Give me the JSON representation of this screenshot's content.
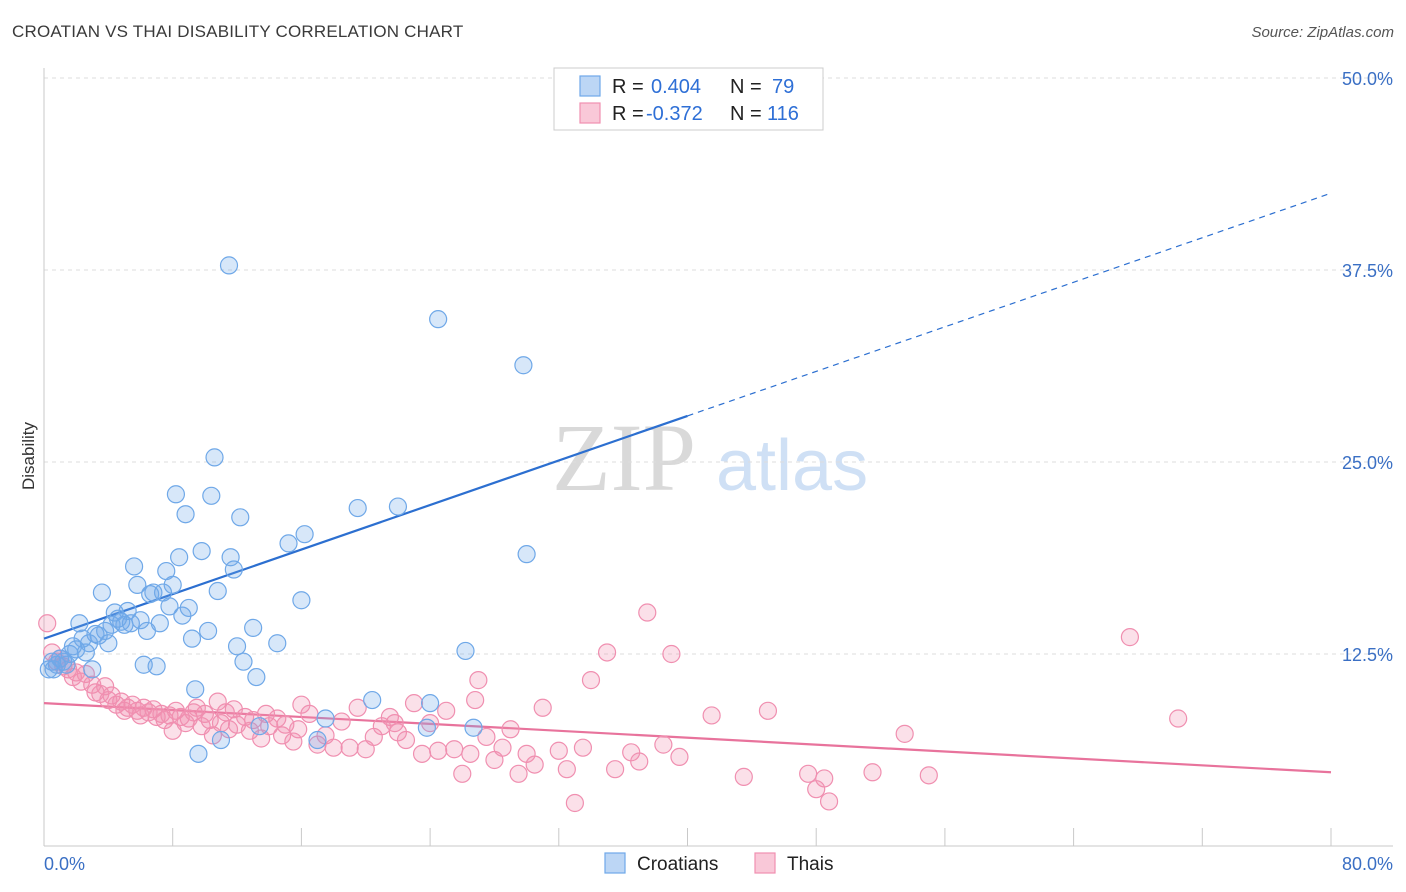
{
  "title": "CROATIAN VS THAI DISABILITY CORRELATION CHART",
  "source": "Source: ZipAtlas.com",
  "watermark": {
    "zip": "ZIP",
    "atlas": "atlas"
  },
  "colors": {
    "blue": "#6fa8e8",
    "blue_line": "#2c6fd0",
    "pink": "#f08fb0",
    "pink_line": "#e8739c",
    "axis_label": "#3a6fc4",
    "grid": "#dddddd"
  },
  "legend": {
    "rows": [
      {
        "r_label": "R =",
        "r_value": "0.404",
        "n_label": "N =",
        "n_value": "79"
      },
      {
        "r_label": "R =",
        "r_value": "-0.372",
        "n_label": "N =",
        "n_value": "116"
      }
    ]
  },
  "bottom_legend": [
    "Croatians",
    "Thais"
  ],
  "chart_data": {
    "type": "scatter",
    "title": "CROATIAN VS THAI DISABILITY CORRELATION CHART",
    "xlabel": "",
    "ylabel": "Disability",
    "xlim": [
      0,
      80
    ],
    "ylim": [
      0,
      50
    ],
    "x_tick_labels": [
      "0.0%",
      "80.0%"
    ],
    "y_ticks": [
      12.5,
      25.0,
      37.5,
      50.0
    ],
    "y_tick_labels": [
      "12.5%",
      "25.0%",
      "37.5%",
      "50.0%"
    ],
    "grid": "horizontal dashed",
    "series": [
      {
        "name": "Croatians",
        "color": "#6fa8e8",
        "R": 0.404,
        "N": 79,
        "trend": {
          "x0": 0,
          "y0": 13.5,
          "x1": 40,
          "y1": 28.0,
          "dashed_to_x": 80,
          "dashed_to_y": 42.5
        },
        "points": [
          [
            0.3,
            11.5
          ],
          [
            0.5,
            12.0
          ],
          [
            0.6,
            11.5
          ],
          [
            0.8,
            11.8
          ],
          [
            1.0,
            12.2
          ],
          [
            1.2,
            12.0
          ],
          [
            1.4,
            11.8
          ],
          [
            1.6,
            12.5
          ],
          [
            1.8,
            13.0
          ],
          [
            2.0,
            12.8
          ],
          [
            2.2,
            14.5
          ],
          [
            2.4,
            13.5
          ],
          [
            2.6,
            12.6
          ],
          [
            2.8,
            13.2
          ],
          [
            3.0,
            11.5
          ],
          [
            3.2,
            13.8
          ],
          [
            3.4,
            13.7
          ],
          [
            3.6,
            16.5
          ],
          [
            3.8,
            14.0
          ],
          [
            4.0,
            13.2
          ],
          [
            4.2,
            14.4
          ],
          [
            4.4,
            15.2
          ],
          [
            4.6,
            14.8
          ],
          [
            4.8,
            14.6
          ],
          [
            5.0,
            14.4
          ],
          [
            5.2,
            15.3
          ],
          [
            5.4,
            14.5
          ],
          [
            5.6,
            18.2
          ],
          [
            5.8,
            17.0
          ],
          [
            6.0,
            14.7
          ],
          [
            6.2,
            11.8
          ],
          [
            6.4,
            14.0
          ],
          [
            6.6,
            16.4
          ],
          [
            6.8,
            16.5
          ],
          [
            7.0,
            11.7
          ],
          [
            7.2,
            14.5
          ],
          [
            7.4,
            16.5
          ],
          [
            7.6,
            17.9
          ],
          [
            7.8,
            15.6
          ],
          [
            8.0,
            17.0
          ],
          [
            8.2,
            22.9
          ],
          [
            8.4,
            18.8
          ],
          [
            8.6,
            15.0
          ],
          [
            8.8,
            21.6
          ],
          [
            9.0,
            15.5
          ],
          [
            9.2,
            13.5
          ],
          [
            9.4,
            10.2
          ],
          [
            9.6,
            6.0
          ],
          [
            9.8,
            19.2
          ],
          [
            10.2,
            14.0
          ],
          [
            10.4,
            22.8
          ],
          [
            10.6,
            25.3
          ],
          [
            10.8,
            16.6
          ],
          [
            11.0,
            6.9
          ],
          [
            11.6,
            18.8
          ],
          [
            11.8,
            18.0
          ],
          [
            12.0,
            13.0
          ],
          [
            12.2,
            21.4
          ],
          [
            12.4,
            12.0
          ],
          [
            11.5,
            37.8
          ],
          [
            13.0,
            14.2
          ],
          [
            13.2,
            11.0
          ],
          [
            13.4,
            7.8
          ],
          [
            14.5,
            13.2
          ],
          [
            15.2,
            19.7
          ],
          [
            16.0,
            16.0
          ],
          [
            16.2,
            20.3
          ],
          [
            17.0,
            6.9
          ],
          [
            17.5,
            8.3
          ],
          [
            19.5,
            22.0
          ],
          [
            20.4,
            9.5
          ],
          [
            24.0,
            9.3
          ],
          [
            24.5,
            34.3
          ],
          [
            23.8,
            7.7
          ],
          [
            30.0,
            19.0
          ],
          [
            29.8,
            31.3
          ],
          [
            22.0,
            22.1
          ],
          [
            26.7,
            7.7
          ],
          [
            26.2,
            12.7
          ]
        ]
      },
      {
        "name": "Thais",
        "color": "#f08fb0",
        "R": -0.372,
        "N": 116,
        "trend": {
          "x0": 0,
          "y0": 9.3,
          "x1": 80,
          "y1": 4.8
        },
        "points": [
          [
            0.2,
            14.5
          ],
          [
            0.5,
            12.6
          ],
          [
            0.8,
            12.0
          ],
          [
            1.0,
            12.2
          ],
          [
            1.2,
            11.7
          ],
          [
            1.5,
            11.5
          ],
          [
            1.8,
            11.0
          ],
          [
            2.0,
            11.3
          ],
          [
            2.3,
            10.7
          ],
          [
            2.6,
            11.2
          ],
          [
            3.0,
            10.5
          ],
          [
            3.2,
            10.0
          ],
          [
            3.5,
            9.9
          ],
          [
            3.8,
            10.4
          ],
          [
            4.0,
            9.5
          ],
          [
            4.2,
            9.8
          ],
          [
            4.5,
            9.2
          ],
          [
            4.8,
            9.4
          ],
          [
            5.0,
            8.8
          ],
          [
            5.2,
            9.0
          ],
          [
            5.5,
            9.2
          ],
          [
            5.8,
            8.8
          ],
          [
            6.0,
            8.5
          ],
          [
            6.2,
            9.0
          ],
          [
            6.5,
            8.7
          ],
          [
            6.8,
            8.9
          ],
          [
            7.0,
            8.4
          ],
          [
            7.3,
            8.6
          ],
          [
            7.5,
            8.2
          ],
          [
            7.8,
            8.5
          ],
          [
            8.0,
            7.5
          ],
          [
            8.2,
            8.8
          ],
          [
            8.5,
            8.4
          ],
          [
            8.8,
            8.0
          ],
          [
            9.0,
            8.3
          ],
          [
            9.3,
            8.7
          ],
          [
            9.5,
            9.0
          ],
          [
            9.8,
            7.8
          ],
          [
            10.0,
            8.6
          ],
          [
            10.3,
            8.2
          ],
          [
            10.5,
            7.2
          ],
          [
            10.8,
            9.4
          ],
          [
            11.0,
            8.0
          ],
          [
            11.3,
            8.7
          ],
          [
            11.5,
            7.6
          ],
          [
            11.8,
            8.9
          ],
          [
            12.0,
            7.9
          ],
          [
            12.5,
            8.4
          ],
          [
            12.8,
            7.5
          ],
          [
            13.0,
            8.2
          ],
          [
            13.5,
            7.0
          ],
          [
            13.8,
            8.6
          ],
          [
            14.0,
            7.8
          ],
          [
            14.5,
            8.3
          ],
          [
            14.8,
            7.2
          ],
          [
            15.0,
            7.9
          ],
          [
            15.5,
            6.8
          ],
          [
            15.8,
            7.6
          ],
          [
            16.0,
            9.2
          ],
          [
            16.5,
            8.6
          ],
          [
            17.0,
            6.6
          ],
          [
            17.5,
            7.2
          ],
          [
            18.0,
            6.4
          ],
          [
            18.5,
            8.1
          ],
          [
            19.0,
            6.4
          ],
          [
            19.5,
            9.0
          ],
          [
            20.0,
            6.3
          ],
          [
            20.5,
            7.1
          ],
          [
            21.0,
            7.8
          ],
          [
            21.5,
            8.4
          ],
          [
            22.0,
            7.4
          ],
          [
            22.5,
            6.9
          ],
          [
            23.0,
            9.3
          ],
          [
            23.5,
            6.0
          ],
          [
            24.0,
            8.0
          ],
          [
            24.5,
            6.2
          ],
          [
            25.0,
            8.8
          ],
          [
            25.5,
            6.3
          ],
          [
            26.0,
            4.7
          ],
          [
            26.5,
            6.0
          ],
          [
            27.0,
            10.8
          ],
          [
            27.5,
            7.1
          ],
          [
            28.0,
            5.6
          ],
          [
            28.5,
            6.4
          ],
          [
            29.0,
            7.6
          ],
          [
            29.5,
            4.7
          ],
          [
            30.0,
            6.0
          ],
          [
            30.5,
            5.3
          ],
          [
            31.0,
            9.0
          ],
          [
            32.0,
            6.2
          ],
          [
            32.5,
            5.0
          ],
          [
            33.0,
            2.8
          ],
          [
            33.5,
            6.4
          ],
          [
            34.0,
            10.8
          ],
          [
            35.0,
            12.6
          ],
          [
            35.5,
            5.0
          ],
          [
            36.5,
            6.1
          ],
          [
            37.0,
            5.5
          ],
          [
            37.5,
            15.2
          ],
          [
            38.5,
            6.6
          ],
          [
            39.0,
            12.5
          ],
          [
            39.5,
            5.8
          ],
          [
            41.5,
            8.5
          ],
          [
            43.5,
            4.5
          ],
          [
            45.0,
            8.8
          ],
          [
            47.5,
            4.7
          ],
          [
            48.0,
            3.7
          ],
          [
            48.5,
            4.4
          ],
          [
            48.8,
            2.9
          ],
          [
            51.5,
            4.8
          ],
          [
            53.5,
            7.3
          ],
          [
            55.0,
            4.6
          ],
          [
            67.5,
            13.6
          ],
          [
            70.5,
            8.3
          ],
          [
            26.8,
            9.5
          ],
          [
            21.8,
            8.0
          ]
        ]
      }
    ]
  }
}
